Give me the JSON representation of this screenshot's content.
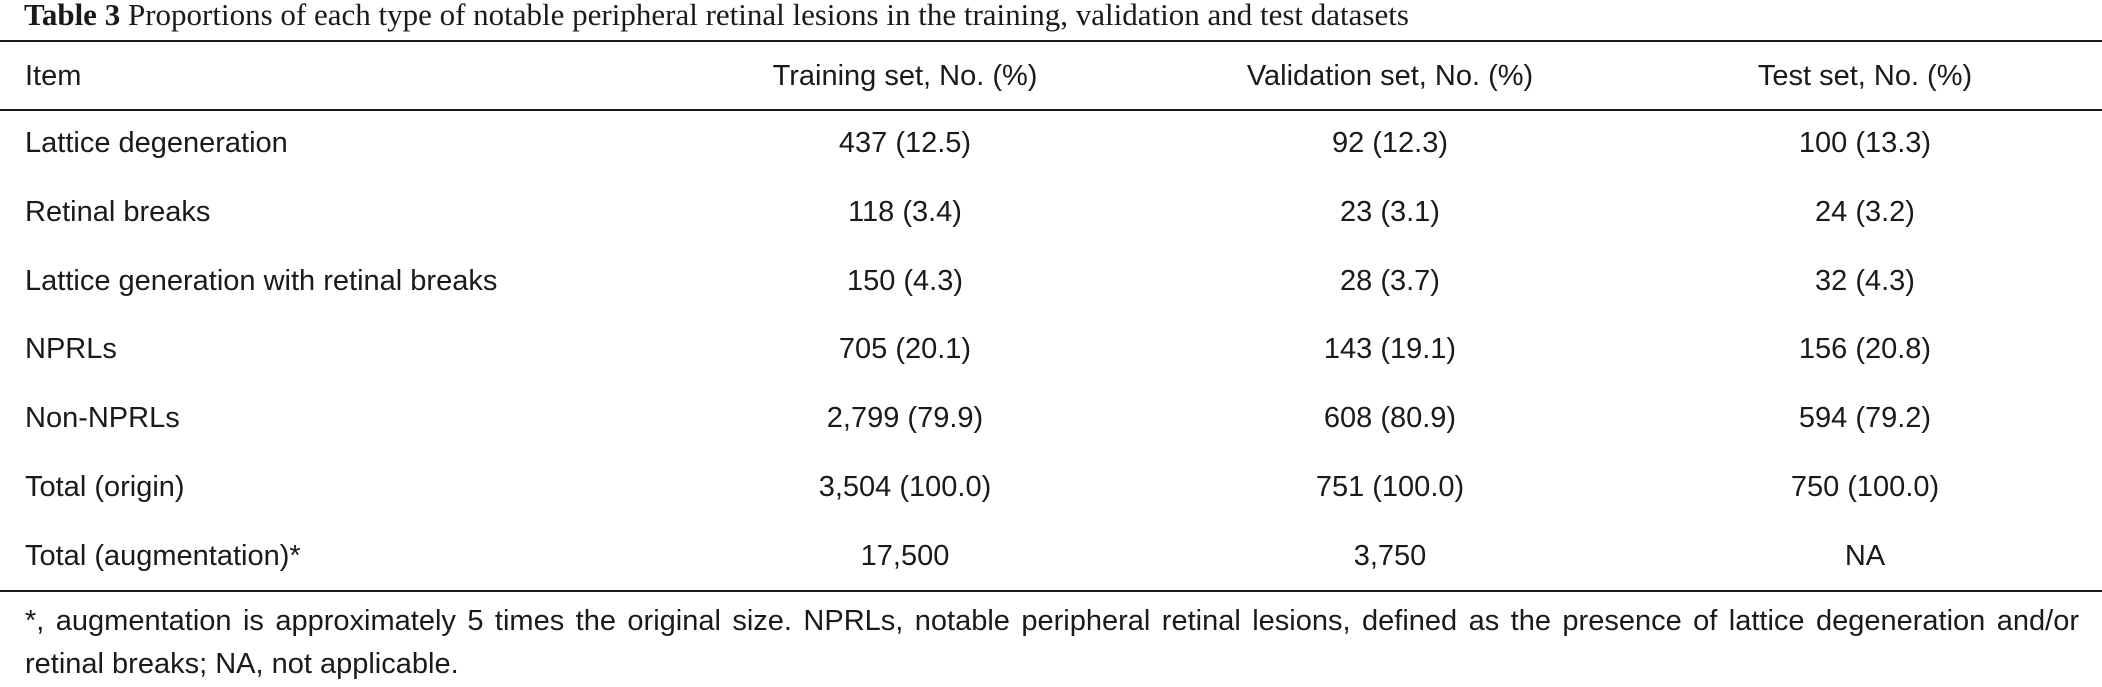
{
  "table": {
    "caption_label": "Table 3",
    "caption_text": "Proportions of each type of notable peripheral retinal lesions in the training, validation and test datasets",
    "headers": [
      "Item",
      "Training set, No. (%)",
      "Validation set, No. (%)",
      "Test set, No. (%)"
    ],
    "rows": [
      [
        "Lattice degeneration",
        "437 (12.5)",
        "92 (12.3)",
        "100 (13.3)"
      ],
      [
        "Retinal breaks",
        "118 (3.4)",
        "23 (3.1)",
        "24 (3.2)"
      ],
      [
        "Lattice generation with retinal breaks",
        "150 (4.3)",
        "28 (3.7)",
        "32 (4.3)"
      ],
      [
        "NPRLs",
        "705 (20.1)",
        "143 (19.1)",
        "156 (20.8)"
      ],
      [
        "Non-NPRLs",
        "2,799 (79.9)",
        "608 (80.9)",
        "594 (79.2)"
      ],
      [
        "Total (origin)",
        "3,504 (100.0)",
        "751 (100.0)",
        "750 (100.0)"
      ],
      [
        "Total (augmentation)*",
        "17,500",
        "3,750",
        "NA"
      ]
    ],
    "footnote": "*, augmentation is approximately 5 times the original size. NPRLs, notable peripheral retinal lesions, defined as the presence of lattice degeneration and/or retinal breaks; NA, not applicable."
  }
}
